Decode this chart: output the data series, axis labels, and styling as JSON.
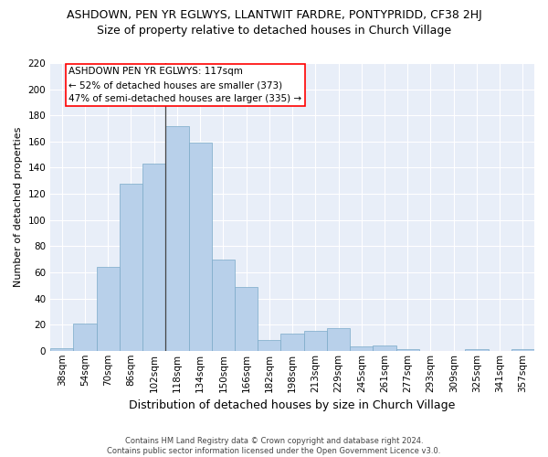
{
  "title": "ASHDOWN, PEN YR EGLWYS, LLANTWIT FARDRE, PONTYPRIDD, CF38 2HJ",
  "subtitle": "Size of property relative to detached houses in Church Village",
  "xlabel": "Distribution of detached houses by size in Church Village",
  "ylabel": "Number of detached properties",
  "categories": [
    "38sqm",
    "54sqm",
    "70sqm",
    "86sqm",
    "102sqm",
    "118sqm",
    "134sqm",
    "150sqm",
    "166sqm",
    "182sqm",
    "198sqm",
    "213sqm",
    "229sqm",
    "245sqm",
    "261sqm",
    "277sqm",
    "293sqm",
    "309sqm",
    "325sqm",
    "341sqm",
    "357sqm"
  ],
  "values": [
    2,
    21,
    64,
    128,
    143,
    172,
    159,
    70,
    49,
    8,
    13,
    15,
    17,
    3,
    4,
    1,
    0,
    0,
    1,
    0,
    1
  ],
  "bar_color": "#b8d0ea",
  "bar_edge_color": "#7aaac8",
  "annotation_text": "ASHDOWN PEN YR EGLWYS: 117sqm\n← 52% of detached houses are smaller (373)\n47% of semi-detached houses are larger (335) →",
  "vline_x": 5.0,
  "ylim": [
    0,
    220
  ],
  "yticks": [
    0,
    20,
    40,
    60,
    80,
    100,
    120,
    140,
    160,
    180,
    200,
    220
  ],
  "background_color": "#e8eef8",
  "grid_color": "#ffffff",
  "footer": "Contains HM Land Registry data © Crown copyright and database right 2024.\nContains public sector information licensed under the Open Government Licence v3.0.",
  "title_fontsize": 9,
  "subtitle_fontsize": 9,
  "xlabel_fontsize": 9,
  "ylabel_fontsize": 8,
  "tick_fontsize": 7.5,
  "footer_fontsize": 6,
  "ann_fontsize": 7.5
}
